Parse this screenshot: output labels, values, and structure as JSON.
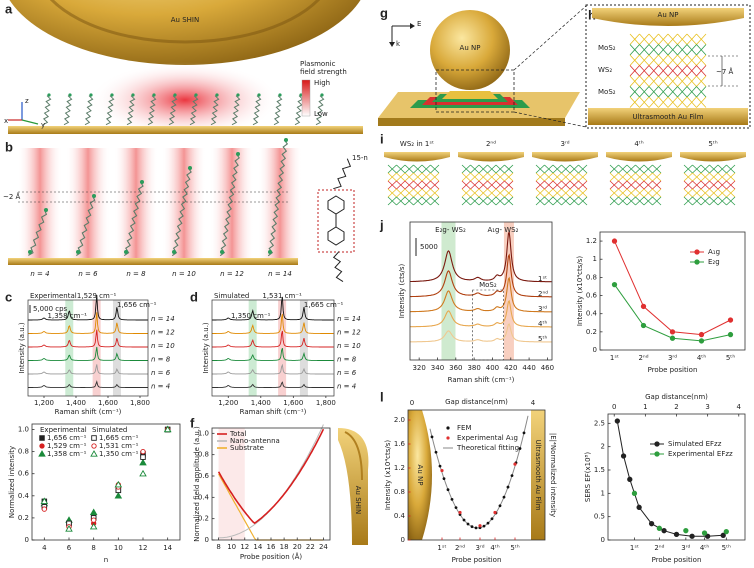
{
  "panels": {
    "a": {
      "label": "a",
      "title": "Au SHIN",
      "field_lines": [
        "Plasmonic",
        "field strength"
      ],
      "high": "High",
      "low": "Low",
      "axis_z": "z",
      "axis_x": "x",
      "axis_y": "y"
    },
    "b": {
      "label": "b",
      "gap": "~2 Å",
      "chain": "15-n",
      "n_labels": [
        "n = 4",
        "n = 6",
        "n = 8",
        "n = 10",
        "n = 12",
        "n = 14"
      ]
    },
    "c": {
      "label": "c",
      "title": "Experimental",
      "scale": "5,000 cps",
      "peaks": [
        "1,358 cm⁻¹",
        "1,529 cm⁻¹",
        "1,656 cm⁻¹"
      ],
      "n_labels": [
        "n = 14",
        "n = 12",
        "n = 10",
        "n = 8",
        "n = 6",
        "n = 4"
      ],
      "ylabel": "Intensity (a.u.)",
      "xlabel": "Raman shift (cm⁻¹)",
      "xticks": [
        "1,200",
        "1,400",
        "1,600",
        "1,800"
      ]
    },
    "d": {
      "label": "d",
      "title": "Simulated",
      "peaks": [
        "1,350 cm⁻¹",
        "1,531 cm⁻¹",
        "1,665 cm⁻¹"
      ],
      "n_labels": [
        "n = 14",
        "n = 12",
        "n = 10",
        "n = 8",
        "n = 6",
        "n = 4"
      ],
      "ylabel": "Intensity (a.u.)",
      "xlabel": "Raman shift (cm⁻¹)",
      "xticks": [
        "1,200",
        "1,400",
        "1,600",
        "1,800"
      ]
    },
    "f": {
      "label": "f",
      "legend": [
        "Total",
        "Nano-antenna",
        "Substrate"
      ],
      "ylabel": "Normalized field amplitude (a.u.)",
      "xlabel": "Probe position (Å)",
      "xticks": [
        "8",
        "10",
        "12",
        "14",
        "16",
        "18",
        "20",
        "22",
        "24"
      ],
      "yticks": [
        "0",
        "0.2",
        "0.4",
        "0.6",
        "0.8",
        "1.0"
      ],
      "tip": "Au SHIN"
    },
    "g": {
      "label": "g",
      "axis_e": "E",
      "axis_k": "k",
      "np": "Au NP"
    },
    "h": {
      "label": "h",
      "np": "Au NP",
      "layers": [
        "MoS₂",
        "WS₂",
        "MoS₂"
      ],
      "gap": "~7 Å",
      "film": "Ultrasmooth Au Film"
    },
    "i": {
      "label": "i",
      "positions": [
        "WS₂ in 1ˢᵗ",
        "2ⁿᵈ",
        "3ʳᵈ",
        "4ᵗʰ",
        "5ᵗʰ"
      ]
    },
    "j": {
      "label": "j",
      "peaks": [
        "E₂g- WS₂",
        "A₁g- WS₂"
      ],
      "mos2": "MoS₂",
      "scale": "5000",
      "rows": [
        "1ˢᵗ",
        "2ⁿᵈ",
        "3ʳᵈ",
        "4ᵗʰ",
        "5ᵗʰ"
      ],
      "ylabel": "Intensity (cts/s)",
      "xlabel": "Raman shift (cm⁻¹)",
      "xticks": [
        "320",
        "340",
        "360",
        "380",
        "400",
        "420",
        "440",
        "460"
      ]
    },
    "l": {
      "label": "l",
      "top_label": "Gap distance(nm)",
      "top_ticks": [
        "0",
        "4"
      ],
      "ylabel": "Intensity (x10⁴cts/s)",
      "yticks": [
        "0",
        "0.4",
        "0.8",
        "1.2",
        "1.6",
        "2.0"
      ],
      "y2label": "|E|⁴Normalized intensity",
      "legend": [
        "FEM",
        "Experimental A₁g",
        "Theoretical fitting"
      ],
      "np": "Au NP",
      "film": "Ultrasmooth Au Film",
      "xlabel": "Probe position",
      "xticks": [
        "1ˢᵗ",
        "2ⁿᵈ",
        "3ʳᵈ",
        "4ᵗʰ",
        "5ᵗʰ"
      ]
    }
  },
  "chart_data": [
    {
      "type": "scatter",
      "xlabel": "n",
      "ylabel": "Normalized intensity",
      "legend_titles": [
        "Experimental",
        "Simulated"
      ],
      "x": [
        4,
        6,
        8,
        10,
        12,
        14
      ],
      "xlim": [
        3,
        15
      ],
      "xticks": [
        4,
        6,
        8,
        10,
        12,
        14
      ],
      "ylim": [
        0,
        1.05
      ],
      "yticks": [
        0,
        0.2,
        0.4,
        0.6,
        0.8,
        {
          "value": 1,
          "label": "1.0"
        }
      ],
      "series": [
        {
          "name": "1,656 cm⁻¹",
          "color": "#222222",
          "marker": "square",
          "filled": true,
          "values": [
            0.35,
            0.15,
            0.2,
            0.45,
            0.78,
            1
          ]
        },
        {
          "name": "1,529 cm⁻¹",
          "color": "#d62020",
          "marker": "circle",
          "filled": true,
          "values": [
            0.3,
            0.12,
            0.15,
            0.5,
            0.75,
            1
          ]
        },
        {
          "name": "1,358 cm⁻¹",
          "color": "#1a8a3a",
          "marker": "triangle",
          "filled": true,
          "values": [
            0.33,
            0.18,
            0.25,
            0.4,
            0.7,
            1
          ]
        },
        {
          "name": "1,665 cm⁻¹",
          "color": "#222222",
          "marker": "square",
          "filled": false,
          "values": [
            0.3,
            0.15,
            0.2,
            0.45,
            0.75,
            1
          ]
        },
        {
          "name": "1,531 cm⁻¹",
          "color": "#d62020",
          "marker": "circle",
          "filled": false,
          "values": [
            0.28,
            0.12,
            0.18,
            0.48,
            0.8,
            1
          ]
        },
        {
          "name": "1,350 cm⁻¹",
          "color": "#1a8a3a",
          "marker": "triangle",
          "filled": false,
          "values": [
            0.35,
            0.1,
            0.12,
            0.5,
            0.6,
            1
          ]
        }
      ]
    },
    {
      "type": "line",
      "xlabel": "Probe position",
      "ylabel": "Intensity (x10⁴cts/s)",
      "categories": [
        "1ˢᵗ",
        "2ⁿᵈ",
        "3ʳᵈ",
        "4ᵗʰ",
        "5ᵗʰ"
      ],
      "ylim": [
        0,
        1.3
      ],
      "yticks": [
        0,
        0.2,
        0.4,
        0.6,
        0.8,
        1,
        1.2
      ],
      "series": [
        {
          "name": "A₁g",
          "color": "#e03030",
          "marker": "circle",
          "filled": true,
          "values": [
            1.2,
            0.48,
            0.2,
            0.17,
            0.33
          ]
        },
        {
          "name": "E₂g",
          "color": "#2e9e3e",
          "marker": "circle",
          "filled": true,
          "values": [
            0.72,
            0.27,
            0.13,
            0.1,
            0.17
          ]
        }
      ]
    },
    {
      "type": "line",
      "xlabel": "Gap distance(nm)",
      "x2label": "Probe position",
      "ylabel": "SERS EF(x10⁸)",
      "xlim": [
        -0.2,
        4.2
      ],
      "xticks": [
        0,
        1,
        2,
        3,
        4
      ],
      "x2ticks": [
        {
          "value": 0.65,
          "label": "1ˢᵗ"
        },
        {
          "value": 1.45,
          "label": "2ⁿᵈ"
        },
        {
          "value": 2.3,
          "label": "3ʳᵈ"
        },
        {
          "value": 2.9,
          "label": "4ᵗʰ"
        },
        {
          "value": 3.6,
          "label": "5ᵗʰ"
        }
      ],
      "ylim": [
        0,
        2.7
      ],
      "yticks": [
        0,
        0.5,
        1,
        1.5,
        2,
        2.5
      ],
      "series": [
        {
          "name": "Simulated EFzz",
          "color": "#222222",
          "marker": "circle",
          "filled": true,
          "x": [
            0.1,
            0.3,
            0.5,
            0.8,
            1.2,
            1.6,
            2,
            2.5,
            3,
            3.5
          ],
          "values": [
            2.55,
            1.8,
            1.3,
            0.7,
            0.35,
            0.2,
            0.12,
            0.08,
            0.08,
            0.1
          ]
        },
        {
          "name": "Experimental EFzz",
          "color": "#2e9e3e",
          "marker": "circle",
          "filled": true,
          "nolines": true,
          "x": [
            0.65,
            1.45,
            2.3,
            2.9,
            3.6
          ],
          "values": [
            1.0,
            0.25,
            0.2,
            0.15,
            0.18
          ]
        }
      ]
    }
  ]
}
